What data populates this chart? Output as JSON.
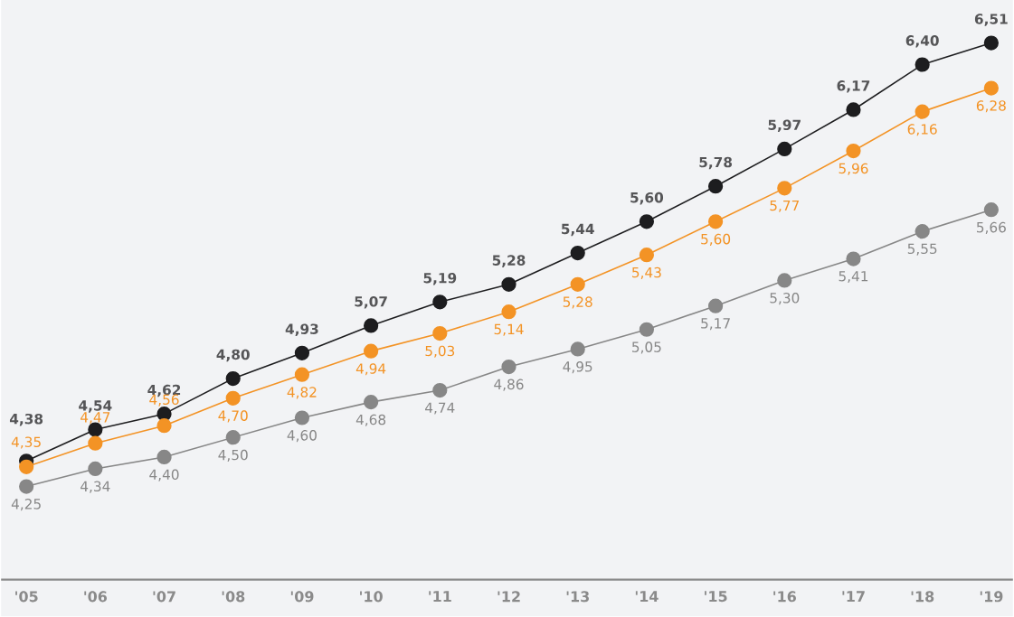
{
  "chart_data": {
    "type": "line",
    "categories": [
      "'05",
      "'06",
      "'07",
      "'08",
      "'09",
      "'10",
      "'11",
      "'12",
      "'13",
      "'14",
      "'15",
      "'16",
      "'17",
      "'18",
      "'19"
    ],
    "marker": "circle",
    "line_style": "solid",
    "grid": false,
    "series": [
      {
        "color": "#1d1d1f",
        "values": [
          4.38,
          4.54,
          4.62,
          4.8,
          4.93,
          5.07,
          5.19,
          5.28,
          5.44,
          5.6,
          5.78,
          5.97,
          6.17,
          6.4,
          6.51
        ],
        "value_labels": [
          "4,38",
          "4,54",
          "4,62",
          "4,80",
          "4,93",
          "5,07",
          "5,19",
          "5,28",
          "5,44",
          "5,60",
          "5,78",
          "5,97",
          "6,17",
          "6,40",
          "6,51"
        ]
      },
      {
        "color": "#f39325",
        "values": [
          4.35,
          4.47,
          4.56,
          4.7,
          4.82,
          4.94,
          5.03,
          5.14,
          5.28,
          5.43,
          5.6,
          5.77,
          5.96,
          6.16,
          6.28
        ],
        "value_labels": [
          "4,35",
          "4,47",
          "4,56",
          "4,70",
          "4,82",
          "4,94",
          "5,03",
          "5,14",
          "5,28",
          "5,43",
          "5,60",
          "5,77",
          "5,96",
          "6,16",
          "6,28"
        ]
      },
      {
        "color": "#878787",
        "values": [
          4.25,
          4.34,
          4.4,
          4.5,
          4.6,
          4.68,
          4.74,
          4.86,
          4.95,
          5.05,
          5.17,
          5.3,
          5.41,
          5.55,
          5.66
        ],
        "value_labels": [
          "4,25",
          "4,34",
          "4,40",
          "4,50",
          "4,60",
          "4,68",
          "4,74",
          "4,86",
          "4,95",
          "5,05",
          "5,17",
          "5,30",
          "5,41",
          "5,55",
          "5,66"
        ]
      }
    ]
  }
}
